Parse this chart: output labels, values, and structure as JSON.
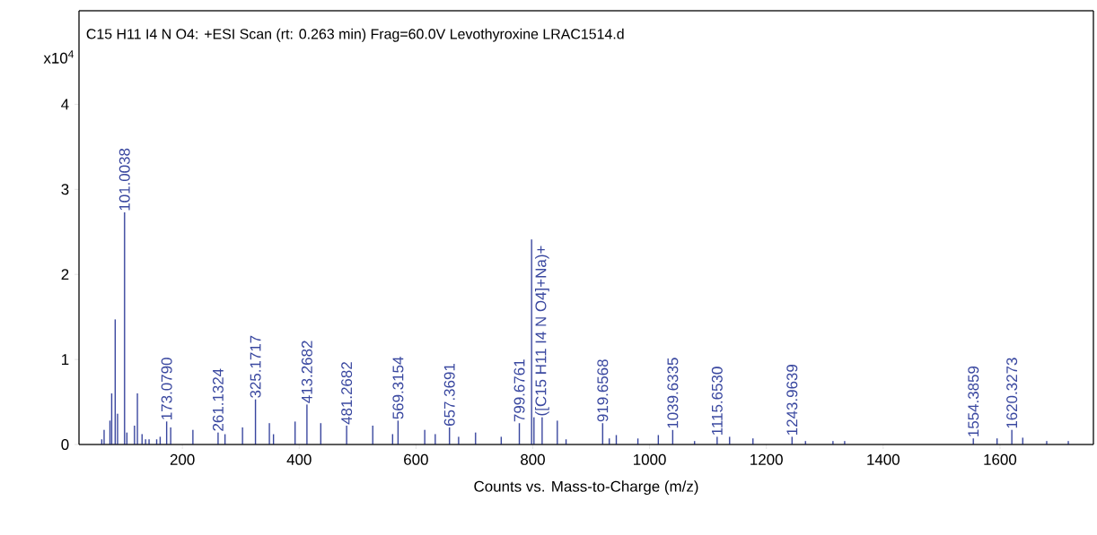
{
  "chart_data": {
    "type": "bar",
    "title": "C15 H11 I4 N O4: +ESI Scan (rt: 0.263 min) Frag=60.0V Levothyroxine LRAC1514.d",
    "xlabel": "Counts vs. Mass-to-Charge (m/z)",
    "x": [
      62,
      66,
      76,
      79,
      85,
      89,
      101.0038,
      105,
      118,
      123,
      131,
      137,
      143,
      156,
      162,
      173.079,
      180,
      218,
      261.1324,
      273,
      303,
      325.1717,
      349,
      356,
      393,
      413.2682,
      437,
      481.2682,
      526,
      560,
      569.3154,
      615,
      633,
      657.3691,
      673,
      702,
      746,
      777,
      798,
      802,
      816,
      842,
      857,
      919.6568,
      931,
      943,
      980,
      1015,
      1039.6335,
      1077,
      1115.653,
      1137,
      1177,
      1243.9639,
      1267,
      1314,
      1334,
      1554.3859,
      1595,
      1620.3273,
      1639,
      1680,
      1717
    ],
    "series": [
      {
        "color": "#3a48a0",
        "values": [
          0.06,
          0.17,
          0.28,
          0.6,
          1.47,
          0.36,
          2.73,
          0.14,
          0.22,
          0.6,
          0.12,
          0.06,
          0.06,
          0.06,
          0.09,
          0.27,
          0.2,
          0.17,
          0.14,
          0.12,
          0.2,
          0.53,
          0.25,
          0.12,
          0.27,
          0.47,
          0.25,
          0.22,
          0.22,
          0.12,
          0.28,
          0.17,
          0.12,
          0.2,
          0.09,
          0.14,
          0.09,
          0.25,
          2.41,
          0.32,
          0.32,
          0.28,
          0.06,
          0.25,
          0.07,
          0.11,
          0.07,
          0.11,
          0.17,
          0.04,
          0.09,
          0.09,
          0.07,
          0.09,
          0.04,
          0.04,
          0.04,
          0.07,
          0.07,
          0.17,
          0.08,
          0.04,
          0.04
        ]
      }
    ],
    "xlim": [
      23,
      1760
    ],
    "ylim": [
      0,
      5.1
    ],
    "xticks": [
      200,
      400,
      600,
      800,
      1000,
      1200,
      1400,
      1600
    ],
    "yticks": [
      0,
      1,
      2,
      3,
      4
    ],
    "annotations": [
      "x10$^{4}$",
      {
        "text": "101.0038",
        "x": 101.0038,
        "y": 2.73
      },
      {
        "text": "173.0790",
        "x": 173.079,
        "y": 0.27
      },
      {
        "text": "261.1324",
        "x": 261.1324,
        "y": 0.14
      },
      {
        "text": "325.1717",
        "x": 325.1717,
        "y": 0.53
      },
      {
        "text": "413.2682",
        "x": 413.2682,
        "y": 0.47
      },
      {
        "text": "481.2682",
        "x": 481.2682,
        "y": 0.22
      },
      {
        "text": "569.3154",
        "x": 569.3154,
        "y": 0.28
      },
      {
        "text": "657.3691",
        "x": 657.3691,
        "y": 0.2
      },
      {
        "text": "799.6761",
        "x": 777,
        "y": 0.25
      },
      {
        "text": "([C15 H11 I4 N O4]+Na)+",
        "x": 816,
        "y": 0.32
      },
      {
        "text": "919.6568",
        "x": 919.6568,
        "y": 0.25
      },
      {
        "text": "1039.6335",
        "x": 1039.6335,
        "y": 0.17
      },
      {
        "text": "1115.6530",
        "x": 1115.653,
        "y": 0.09
      },
      {
        "text": "1243.9639",
        "x": 1243.9639,
        "y": 0.09
      },
      {
        "text": "1554.3859",
        "x": 1554.3859,
        "y": 0.07
      },
      {
        "text": "1620.3273",
        "x": 1620.3273,
        "y": 0.17
      }
    ]
  }
}
